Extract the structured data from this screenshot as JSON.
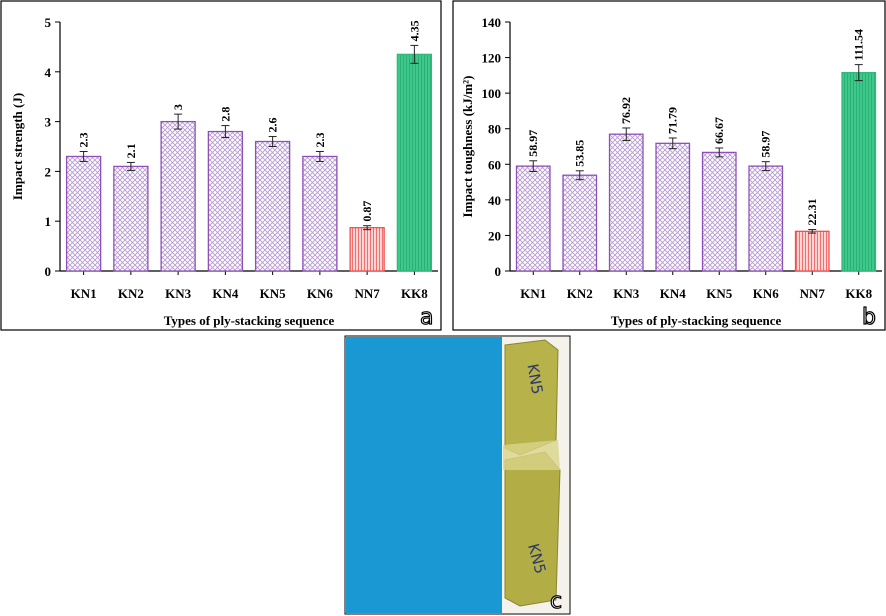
{
  "chart_data": [
    {
      "type": "bar",
      "ylabel": "Impact strength (J)",
      "xlabel": "Types of ply-stacking sequence",
      "panel_label": "a",
      "categories": [
        "KN1",
        "KN2",
        "KN3",
        "KN4",
        "KN5",
        "KN6",
        "NN7",
        "KK8"
      ],
      "values": [
        2.3,
        2.1,
        3,
        2.8,
        2.6,
        2.3,
        0.87,
        4.35
      ],
      "errors": [
        0.1,
        0.08,
        0.15,
        0.12,
        0.1,
        0.1,
        0.04,
        0.18
      ],
      "colors": [
        "#8e4fb8",
        "#8e4fb8",
        "#8e4fb8",
        "#8e4fb8",
        "#8e4fb8",
        "#8e4fb8",
        "#f0504f",
        "#2fb97a"
      ],
      "ylim": [
        0,
        5
      ],
      "yticks": [
        0,
        1,
        2,
        3,
        4,
        5
      ]
    },
    {
      "type": "bar",
      "ylabel": "Impact toughness (kJ/m²)",
      "xlabel": "Types of ply-stacking sequence",
      "panel_label": "b",
      "categories": [
        "KN1",
        "KN2",
        "KN3",
        "KN4",
        "KN5",
        "KN6",
        "NN7",
        "KK8"
      ],
      "values": [
        58.97,
        53.85,
        76.92,
        71.79,
        66.67,
        58.97,
        22.31,
        111.54
      ],
      "errors": [
        3,
        2.5,
        3.5,
        3,
        2.5,
        2.5,
        1,
        4.5
      ],
      "colors": [
        "#8e4fb8",
        "#8e4fb8",
        "#8e4fb8",
        "#8e4fb8",
        "#8e4fb8",
        "#8e4fb8",
        "#f0504f",
        "#2fb97a"
      ],
      "ylim": [
        0,
        140
      ],
      "yticks": [
        0,
        20,
        40,
        60,
        80,
        100,
        120,
        140
      ]
    }
  ],
  "photo": {
    "panel_label": "c",
    "annotations": [
      "KN5",
      "KN5"
    ]
  }
}
